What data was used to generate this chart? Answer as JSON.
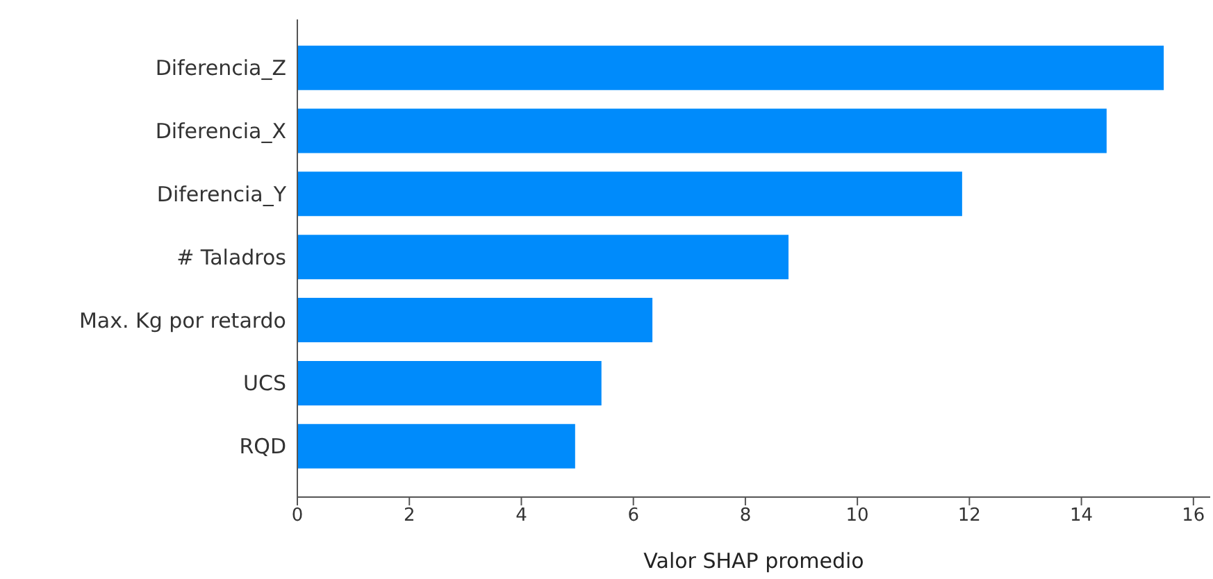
{
  "chart_data": {
    "type": "bar",
    "orientation": "horizontal",
    "xlabel": "Valor SHAP promedio",
    "categories": [
      "Diferencia_Z",
      "Diferencia_X",
      "Diferencia_Y",
      "# Taladros",
      "Max. Kg por retardo",
      "UCS",
      "RQD"
    ],
    "values": [
      15.47,
      14.45,
      11.87,
      8.77,
      6.34,
      5.43,
      4.96
    ],
    "color": "#008bfb",
    "xlim": [
      0,
      16.3
    ],
    "xticks": [
      0,
      2,
      4,
      6,
      8,
      10,
      12,
      14,
      16
    ],
    "grid": false,
    "legend": false
  }
}
